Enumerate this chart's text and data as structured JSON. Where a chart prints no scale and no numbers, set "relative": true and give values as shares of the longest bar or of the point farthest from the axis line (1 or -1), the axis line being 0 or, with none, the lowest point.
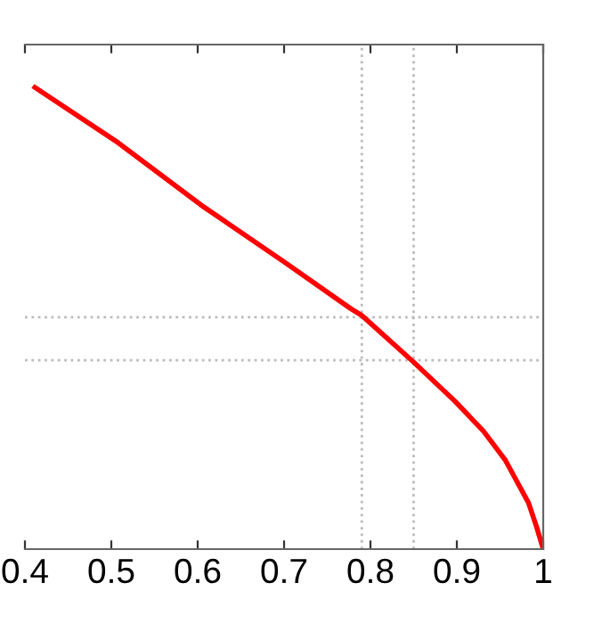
{
  "chart_data": {
    "type": "line",
    "relative": true,
    "x": [
      0.4115,
      0.508,
      0.604,
      0.7,
      0.777,
      0.79,
      0.85,
      0.898,
      0.931,
      0.956,
      0.983,
      0.992,
      1.0
    ],
    "series": [
      {
        "color": "#ff0000",
        "values": [
          1.0,
          0.88,
          0.745,
          0.622,
          0.521,
          0.506,
          0.405,
          0.32,
          0.255,
          0.193,
          0.1,
          0.05,
          0.0
        ]
      }
    ],
    "xlim": [
      0.4,
      1
    ],
    "xticks": [
      0.4,
      0.5,
      0.6,
      0.7,
      0.8,
      0.9,
      1
    ],
    "tick_labels": "x",
    "grid": false,
    "legend": false,
    "marker": "none",
    "line_style": "solid",
    "ref_lines": [
      {
        "axis": "x",
        "value": 0.79,
        "color": "#bbbbbb",
        "line_style": "dotted"
      },
      {
        "axis": "x",
        "value": 0.85,
        "color": "#bbbbbb",
        "line_style": "dotted"
      },
      {
        "axis": "y",
        "value": 0.502,
        "color": "#bbbbbb",
        "line_style": "dotted"
      },
      {
        "axis": "y",
        "value": 0.409,
        "color": "#bbbbbb",
        "line_style": "dotted"
      }
    ]
  }
}
